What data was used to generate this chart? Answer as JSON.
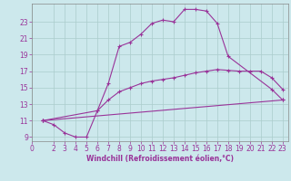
{
  "background_color": "#cce8ec",
  "line_color": "#993399",
  "grid_color": "#aacccc",
  "xlabel": "Windchill (Refroidissement éolien,°C)",
  "xlim": [
    0,
    23.5
  ],
  "ylim": [
    8.5,
    25.2
  ],
  "xticks": [
    0,
    2,
    3,
    4,
    5,
    6,
    7,
    8,
    9,
    10,
    11,
    12,
    13,
    14,
    15,
    16,
    17,
    18,
    19,
    20,
    21,
    22,
    23
  ],
  "yticks": [
    9,
    11,
    13,
    15,
    17,
    19,
    21,
    23
  ],
  "line1_x": [
    1,
    2,
    3,
    4,
    5,
    6,
    7,
    8,
    9,
    10,
    11,
    12,
    13,
    14,
    15,
    16,
    17,
    18,
    22,
    23
  ],
  "line1_y": [
    11.0,
    10.5,
    9.5,
    9.0,
    9.0,
    12.2,
    15.5,
    20.0,
    20.5,
    21.5,
    22.8,
    23.2,
    23.0,
    24.5,
    24.5,
    24.3,
    22.8,
    18.8,
    14.8,
    13.5
  ],
  "line2_x": [
    1,
    6,
    7,
    8,
    9,
    10,
    11,
    12,
    13,
    14,
    15,
    16,
    17,
    18,
    19,
    20,
    21,
    22,
    23
  ],
  "line2_y": [
    11.0,
    12.2,
    13.5,
    14.5,
    15.0,
    15.5,
    15.8,
    16.0,
    16.2,
    16.5,
    16.8,
    17.0,
    17.2,
    17.1,
    17.0,
    17.0,
    17.0,
    16.2,
    14.8
  ],
  "line3_x": [
    1,
    23
  ],
  "line3_y": [
    11.0,
    13.5
  ],
  "tick_fontsize": 5.5,
  "label_fontsize": 5.5
}
